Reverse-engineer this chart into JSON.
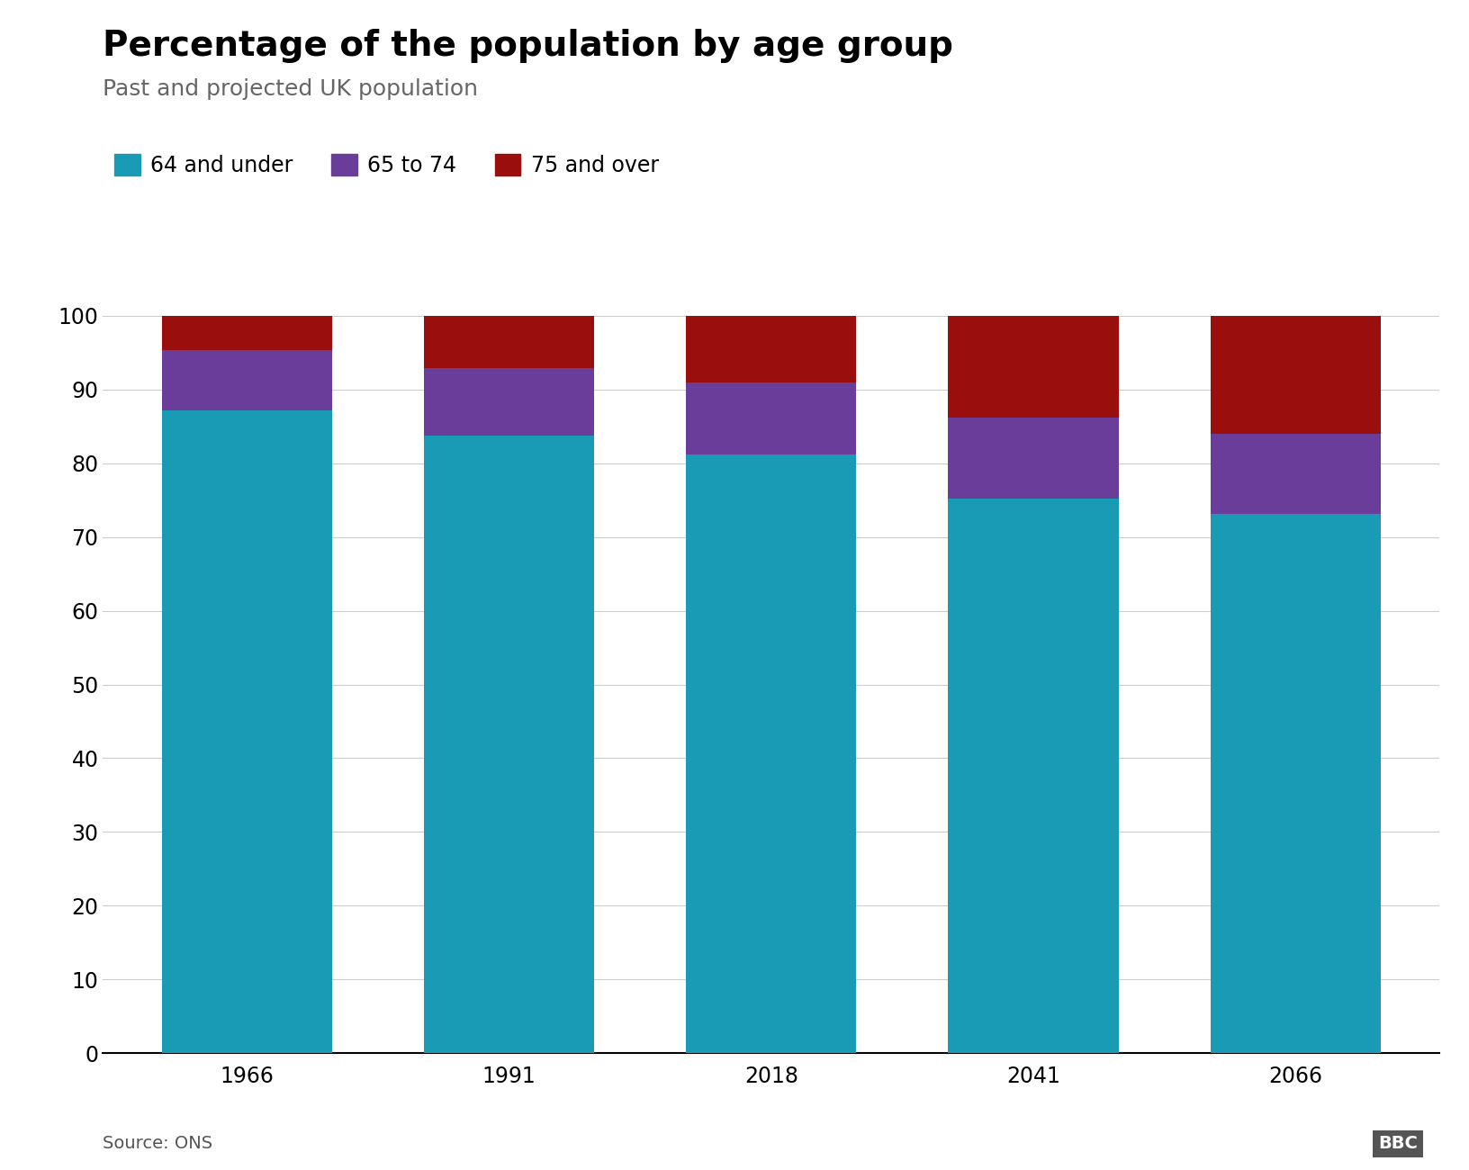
{
  "years": [
    "1966",
    "1991",
    "2018",
    "2041",
    "2066"
  ],
  "under64": [
    87.2,
    83.8,
    81.2,
    75.2,
    73.1
  ],
  "age65_74": [
    8.2,
    9.1,
    9.8,
    11.0,
    10.9
  ],
  "over75": [
    4.6,
    7.1,
    9.0,
    13.8,
    16.0
  ],
  "color_under64": "#1a9bb5",
  "color_65_74": "#6a3d9a",
  "color_over75": "#9b0e0e",
  "title": "Percentage of the population by age group",
  "subtitle": "Past and projected UK population",
  "legend_labels": [
    "64 and under",
    "65 to 74",
    "75 and over"
  ],
  "source": "Source: ONS",
  "ylim": [
    0,
    100
  ],
  "yticks": [
    0,
    10,
    20,
    30,
    40,
    50,
    60,
    70,
    80,
    90,
    100
  ],
  "bar_width": 0.65,
  "background_color": "#ffffff",
  "grid_color": "#cccccc",
  "title_fontsize": 28,
  "subtitle_fontsize": 18,
  "tick_fontsize": 17,
  "legend_fontsize": 17,
  "source_fontsize": 14
}
